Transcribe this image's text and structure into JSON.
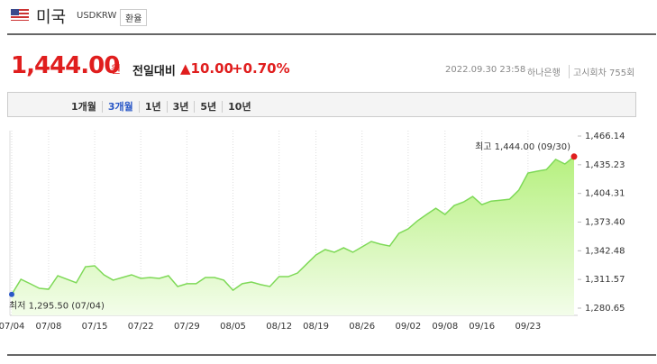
{
  "header": {
    "country": "미국",
    "code": "USDKRW",
    "button": "환율"
  },
  "quote": {
    "price": "1,444.00",
    "unit": "원",
    "change_label": "전일대비",
    "change": "▲10.00",
    "change_pct": "+0.70%",
    "datetime": "2022.09.30 23:58",
    "bank": "하나은행",
    "round": "고시회차 755회"
  },
  "tabs": [
    "1개월",
    "3개월",
    "1년",
    "3년",
    "5년",
    "10년"
  ],
  "chart_data": {
    "type": "area",
    "categories": [
      "07/04",
      null,
      null,
      null,
      "07/08",
      null,
      null,
      null,
      null,
      "07/15",
      null,
      null,
      null,
      null,
      "07/22",
      null,
      null,
      null,
      null,
      "07/29",
      null,
      null,
      null,
      null,
      "08/05",
      null,
      null,
      null,
      null,
      "08/12",
      null,
      null,
      null,
      "08/19",
      null,
      null,
      null,
      null,
      "08/26",
      null,
      null,
      null,
      null,
      "09/02",
      null,
      null,
      null,
      "09/08",
      null,
      null,
      null,
      "09/16",
      null,
      null,
      null,
      null,
      "09/23",
      null,
      null,
      null,
      null,
      null
    ],
    "values": [
      1295.5,
      1311.8,
      1307,
      1302,
      1301,
      1315.6,
      1311.8,
      1308,
      1325.3,
      1326.3,
      1316.6,
      1310.8,
      1313.7,
      1316.6,
      1312.7,
      1313.7,
      1312.7,
      1315.6,
      1304,
      1307,
      1307,
      1313.7,
      1313.7,
      1310.8,
      1300,
      1307,
      1308.8,
      1306,
      1304,
      1314.6,
      1314.6,
      1318.5,
      1328.3,
      1338,
      1343.8,
      1340.9,
      1345.7,
      1340.9,
      1346.7,
      1352.5,
      1349.6,
      1347.6,
      1361.3,
      1366.1,
      1374.7,
      1381.6,
      1388.3,
      1381.6,
      1391.3,
      1395,
      1401,
      1392.2,
      1396,
      1397,
      1398,
      1407.8,
      1426.3,
      1428.3,
      1430,
      1441,
      1436,
      1444
    ],
    "color": "#7ed957",
    "ylim": [
      1280.65,
      1466.14
    ],
    "yticks": [
      {
        "value": 1280.65,
        "label": "1,280.65"
      },
      {
        "value": 1311.57,
        "label": "1,311.57"
      },
      {
        "value": 1342.48,
        "label": "1,342.48"
      },
      {
        "value": 1373.4,
        "label": "1,373.40"
      },
      {
        "value": 1404.31,
        "label": "1,404.31"
      },
      {
        "value": 1435.23,
        "label": "1,435.23"
      },
      {
        "value": 1466.14,
        "label": "1,466.14"
      }
    ],
    "high_label": "최고 1,444.00 (09/30)",
    "low_label": "최저 1,295.50 (07/04)"
  }
}
